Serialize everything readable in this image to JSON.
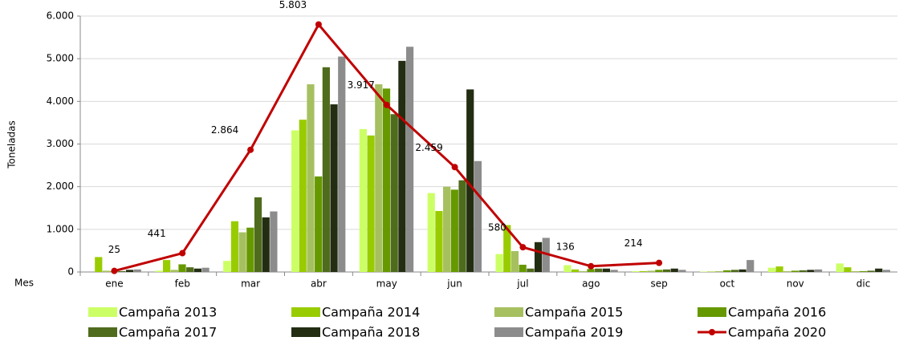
{
  "chart_data": {
    "type": "bar",
    "y_label": "Toneladas",
    "x_label": "Mes",
    "categories": [
      "ene",
      "feb",
      "mar",
      "abr",
      "may",
      "jun",
      "jul",
      "ago",
      "sep",
      "oct",
      "nov",
      "dic"
    ],
    "ylim": [
      0,
      6000
    ],
    "yticks": [
      0,
      {
        "value": 1000,
        "label": "1.000"
      },
      {
        "value": 2000,
        "label": "2.000"
      },
      {
        "value": 3000,
        "label": "3.000"
      },
      {
        "value": 4000,
        "label": "4.000"
      },
      {
        "value": 5000,
        "label": "5.000"
      },
      {
        "value": 6000,
        "label": "6.000"
      }
    ],
    "grid": true,
    "series": [
      {
        "name": "Campaña 2013",
        "color": "#ccff66",
        "values": [
          0,
          30,
          260,
          3320,
          3350,
          1850,
          420,
          160,
          20,
          10,
          100,
          200
        ]
      },
      {
        "name": "Campaña 2014",
        "color": "#99cc00",
        "values": [
          350,
          280,
          1190,
          3570,
          3200,
          1430,
          1100,
          60,
          20,
          10,
          130,
          110
        ]
      },
      {
        "name": "Campaña 2015",
        "color": "#a6c060",
        "values": [
          30,
          50,
          930,
          4400,
          4400,
          2000,
          490,
          20,
          30,
          20,
          20,
          20
        ]
      },
      {
        "name": "Campaña 2016",
        "color": "#669900",
        "values": [
          20,
          180,
          1040,
          2240,
          4300,
          1930,
          170,
          70,
          50,
          40,
          30,
          20
        ]
      },
      {
        "name": "Campaña 2017",
        "color": "#4f6b1c",
        "values": [
          20,
          110,
          1750,
          4800,
          3700,
          2150,
          80,
          80,
          60,
          50,
          40,
          30
        ]
      },
      {
        "name": "Campaña  2018",
        "color": "#232d12",
        "values": [
          50,
          80,
          1280,
          3930,
          4950,
          4280,
          700,
          80,
          80,
          60,
          50,
          80
        ]
      },
      {
        "name": "Campaña 2019",
        "color": "#8c8c8c",
        "values": [
          60,
          100,
          1420,
          5050,
          5280,
          2600,
          800,
          50,
          50,
          280,
          60,
          50
        ]
      },
      {
        "name": "Campaña 2020",
        "color": "#c00000",
        "type": "line",
        "values": [
          25,
          441,
          2864,
          5803,
          3917,
          2459,
          580,
          136,
          214,
          null,
          null,
          null
        ],
        "value_labels": [
          "25",
          "441",
          "2.864",
          "5.803",
          "3.917",
          "2.459",
          "580",
          "136",
          "214",
          null,
          null,
          null
        ]
      }
    ]
  }
}
